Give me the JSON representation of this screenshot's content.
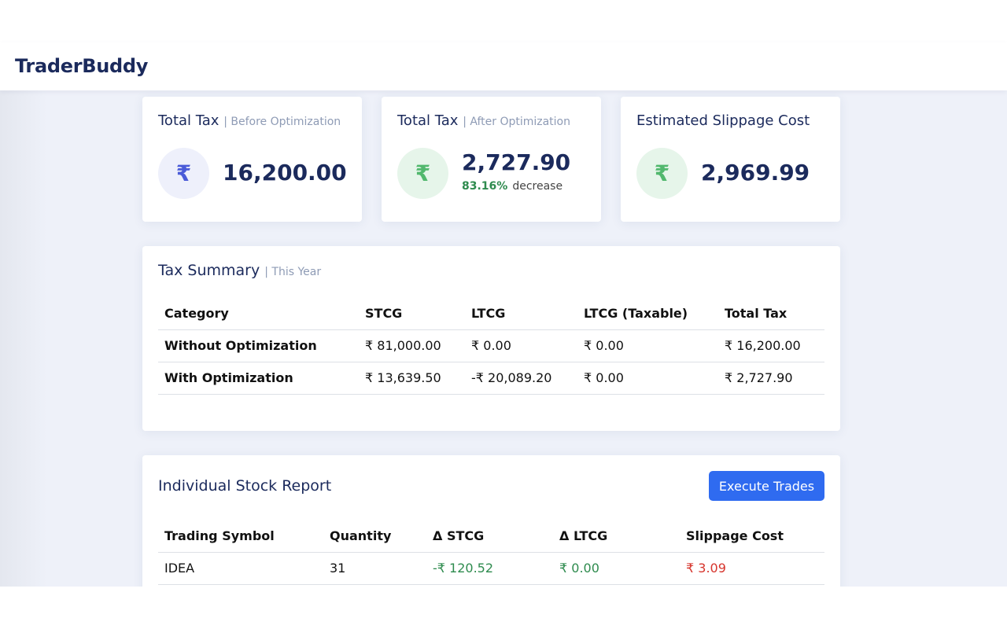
{
  "navbar": {
    "brand": "TraderBuddy"
  },
  "stats": [
    {
      "title": "Total Tax",
      "subtitle": "| Before Optimization",
      "icon": "rupee-icon",
      "value": "16,200.00"
    },
    {
      "title": "Total Tax",
      "subtitle": "| After Optimization",
      "icon": "rupee-icon",
      "value": "2,727.90",
      "change_pct": "83.16%",
      "change_label": "decrease"
    },
    {
      "title": "Estimated Slippage Cost",
      "subtitle": "",
      "icon": "rupee-icon",
      "value": "2,969.99"
    }
  ],
  "tax_summary": {
    "title": "Tax Summary",
    "subtitle": "| This Year",
    "columns": [
      "Category",
      "STCG",
      "LTCG",
      "LTCG (Taxable)",
      "Total Tax"
    ],
    "rows": [
      [
        "Without Optimization",
        "₹ 81,000.00",
        "₹ 0.00",
        "₹ 0.00",
        "₹ 16,200.00"
      ],
      [
        "With Optimization",
        "₹ 13,639.50",
        "-₹ 20,089.20",
        "₹ 0.00",
        "₹ 2,727.90"
      ]
    ]
  },
  "stock_report": {
    "title": "Individual Stock Report",
    "execute_label": "Execute Trades",
    "columns": [
      "Trading Symbol",
      "Quantity",
      "Δ STCG",
      "Δ LTCG",
      "Slippage Cost"
    ],
    "rows": [
      [
        "IDEA",
        "31",
        "-₹ 120.52",
        "₹ 0.00",
        "₹ 3.09"
      ]
    ]
  },
  "colors": {
    "brand": "#1b2a5c",
    "accent": "#2f6bf0",
    "positive": "#2e8b4e",
    "negative": "#d6342c"
  }
}
